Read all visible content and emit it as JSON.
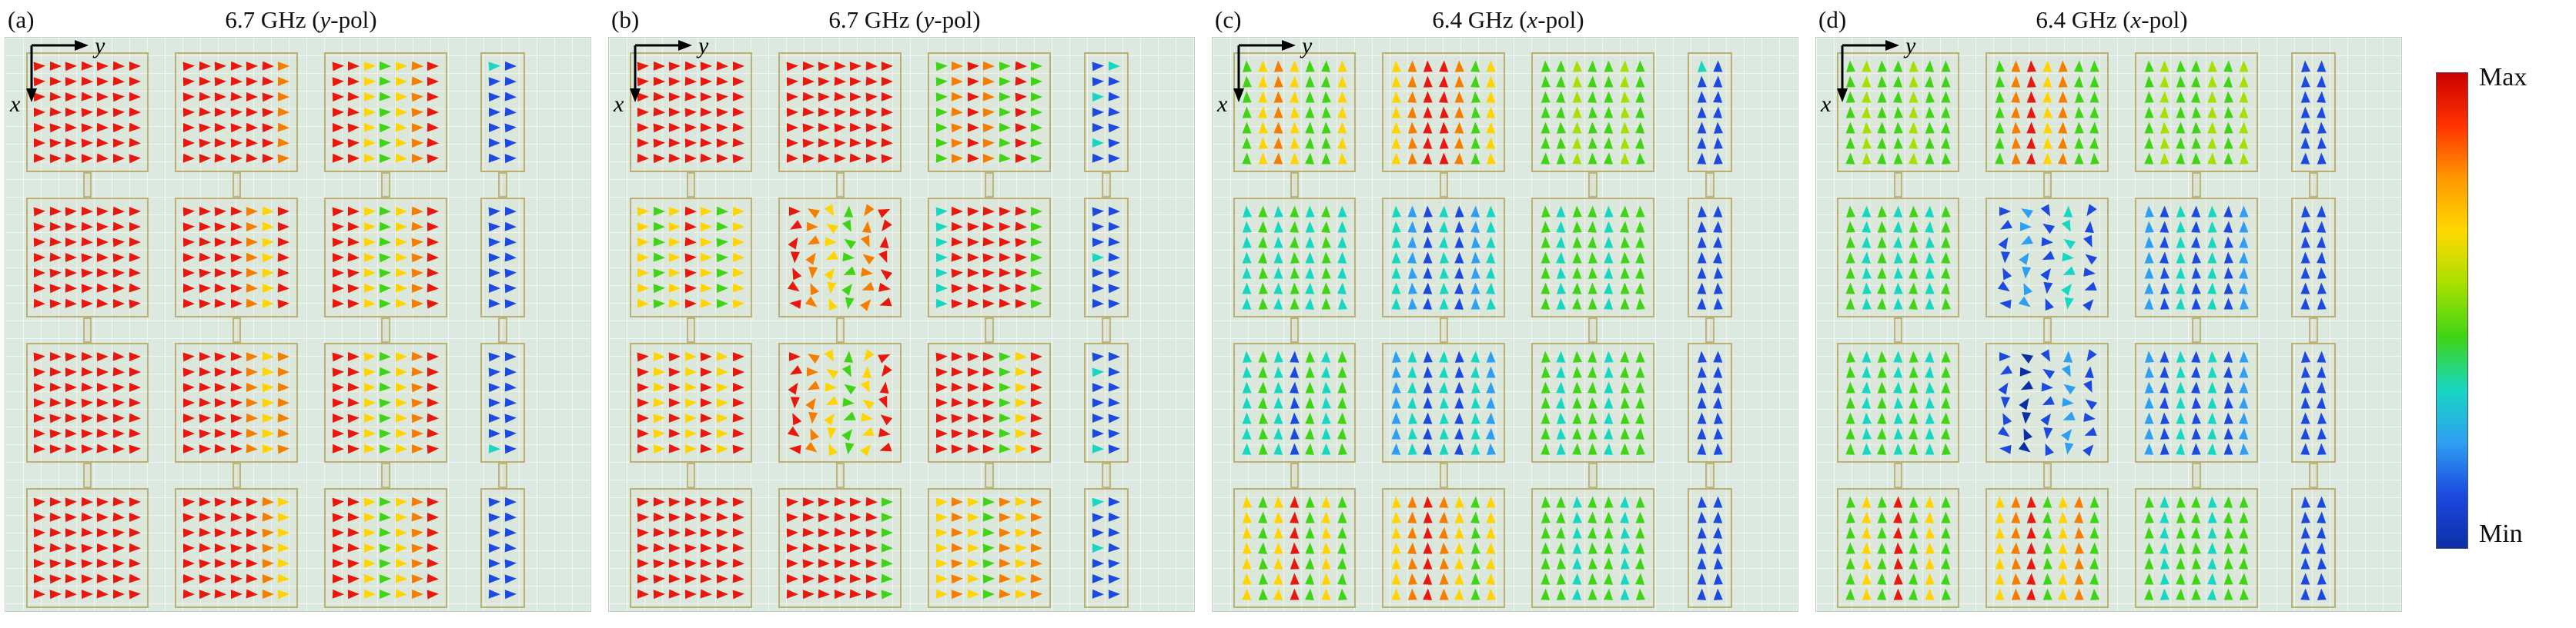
{
  "chart_data": {
    "type": "scatter",
    "subtype": "quiver-vector-field",
    "axes": {
      "x": "x",
      "y": "y"
    },
    "palette": {
      "R": "#e8180f",
      "O": "#f57d00",
      "Y": "#ffd400",
      "L": "#a5e000",
      "G": "#3fd415",
      "C": "#18d7c2",
      "A": "#2e9ff2",
      "B": "#1c49e0",
      "D": "#0d2fa6"
    },
    "style": {
      "plot_bg": "#dce9e1",
      "grid_line": "#f2f8f4",
      "patch_outline": "#b6a462",
      "axis_color": "#000000"
    },
    "colorbar": {
      "max": "Max",
      "min": "Min",
      "gradient": [
        "#cc0000",
        "#ff3300",
        "#ff9900",
        "#ffd900",
        "#a8e000",
        "#3fd415",
        "#18d7c2",
        "#2e9ff2",
        "#1c49e0",
        "#0d2fa6"
      ]
    },
    "panels": [
      {
        "id": "a",
        "label": "(a)",
        "title_prefix": "6.7 GHz (",
        "title_var": "y",
        "title_suffix": "-pol)",
        "arrow_dir": "right",
        "patches": [
          {
            "row": 0,
            "col": 0,
            "cols": "RRRRRRR"
          },
          {
            "row": 0,
            "col": 1,
            "cols": "RRRRRRO"
          },
          {
            "row": 0,
            "col": 2,
            "cols": "RRYGYOR"
          },
          {
            "row": 0,
            "col": 3,
            "cols": [
              "CB",
              "BB",
              "BB",
              "BB",
              "BB",
              "BB",
              "BB"
            ]
          },
          {
            "row": 1,
            "col": 0,
            "cols": "RRRRRRR"
          },
          {
            "row": 1,
            "col": 1,
            "cols": "RRRROYR"
          },
          {
            "row": 1,
            "col": 2,
            "cols": "RRYGYOR"
          },
          {
            "row": 1,
            "col": 3,
            "cols": "BB",
            "rows": 7
          },
          {
            "row": 2,
            "col": 0,
            "cols": "RRRRRRR"
          },
          {
            "row": 2,
            "col": 1,
            "cols": "RRRROYO"
          },
          {
            "row": 2,
            "col": 2,
            "cols": "RRYGYOR"
          },
          {
            "row": 2,
            "col": 3,
            "cols": [
              "BB",
              "BB",
              "BB",
              "BB",
              "BB",
              "BB",
              "CB"
            ]
          },
          {
            "row": 3,
            "col": 0,
            "cols": "RRRRRRR"
          },
          {
            "row": 3,
            "col": 1,
            "cols": "RRRRROY"
          },
          {
            "row": 3,
            "col": 2,
            "cols": "RRYGYOR"
          },
          {
            "row": 3,
            "col": 3,
            "cols": "BB",
            "rows": 7
          }
        ]
      },
      {
        "id": "b",
        "label": "(b)",
        "title_prefix": "6.7 GHz (",
        "title_var": "y",
        "title_suffix": "-pol)",
        "arrow_dir": "right",
        "patches": [
          {
            "row": 0,
            "col": 0,
            "cols": "RRRRRRR"
          },
          {
            "row": 0,
            "col": 1,
            "cols": "RRRRRRR"
          },
          {
            "row": 0,
            "col": 2,
            "cols": "GOROGRG"
          },
          {
            "row": 0,
            "col": 3,
            "cols": [
              "BC",
              "BB",
              "CB",
              "BB",
              "BB",
              "CB",
              "BB"
            ]
          },
          {
            "row": 1,
            "col": 0,
            "cols": "YGYRYGY"
          },
          {
            "row": 1,
            "col": 1,
            "cols": "ROYGOR",
            "swirl": true
          },
          {
            "row": 1,
            "col": 2,
            "cols": "CRRRRRG"
          },
          {
            "row": 1,
            "col": 3,
            "cols": [
              "BB",
              "BB",
              "BB",
              "CB",
              "BB",
              "BB",
              "BB"
            ]
          },
          {
            "row": 2,
            "col": 0,
            "cols": "RYRYRYR"
          },
          {
            "row": 2,
            "col": 1,
            "cols": "ROYGYR",
            "swirl": true
          },
          {
            "row": 2,
            "col": 2,
            "cols": "RRRRGYR"
          },
          {
            "row": 2,
            "col": 3,
            "cols": [
              "BB",
              "CB",
              "BB",
              "BB",
              "BB",
              "BB",
              "CB"
            ]
          },
          {
            "row": 3,
            "col": 0,
            "cols": "RRRRRRR"
          },
          {
            "row": 3,
            "col": 1,
            "cols": "RRRRRRG"
          },
          {
            "row": 3,
            "col": 2,
            "cols": "YOYGOYO"
          },
          {
            "row": 3,
            "col": 3,
            "cols": [
              "CB",
              "BB",
              "BB",
              "CB",
              "BB",
              "BB",
              "BB"
            ]
          }
        ]
      },
      {
        "id": "c",
        "label": "(c)",
        "title_prefix": "6.4 GHz (",
        "title_var": "x",
        "title_suffix": "-pol)",
        "arrow_dir": "up",
        "patches": [
          {
            "row": 0,
            "col": 0,
            "cols": "GYOYGGY"
          },
          {
            "row": 0,
            "col": 1,
            "cols": "YORROGY"
          },
          {
            "row": 0,
            "col": 2,
            "cols": "GGLGGLG"
          },
          {
            "row": 0,
            "col": 3,
            "cols": [
              "CB",
              "BB",
              "BB",
              "BB",
              "BB",
              "BB",
              "BB"
            ]
          },
          {
            "row": 1,
            "col": 0,
            "cols": "CGCGCGC"
          },
          {
            "row": 1,
            "col": 1,
            "cols": "CABCBAC"
          },
          {
            "row": 1,
            "col": 2,
            "cols": "GCGGCGG"
          },
          {
            "row": 1,
            "col": 3,
            "cols": "BB",
            "rows": 7
          },
          {
            "row": 2,
            "col": 0,
            "cols": "CGCBGCG"
          },
          {
            "row": 2,
            "col": 1,
            "cols": "ACBCBCA"
          },
          {
            "row": 2,
            "col": 2,
            "cols": "GCGGCGG"
          },
          {
            "row": 2,
            "col": 3,
            "cols": "BB",
            "rows": 7
          },
          {
            "row": 3,
            "col": 0,
            "cols": "YGYRGYG"
          },
          {
            "row": 3,
            "col": 1,
            "cols": "YOROYGY"
          },
          {
            "row": 3,
            "col": 2,
            "cols": "GGCGGCG"
          },
          {
            "row": 3,
            "col": 3,
            "cols": "BB",
            "rows": 7
          }
        ]
      },
      {
        "id": "d",
        "label": "(d)",
        "title_prefix": "6.4 GHz (",
        "title_var": "x",
        "title_suffix": "-pol)",
        "arrow_dir": "up",
        "patches": [
          {
            "row": 0,
            "col": 0,
            "cols": "GLGGLGG"
          },
          {
            "row": 0,
            "col": 1,
            "cols": "GORYOGG"
          },
          {
            "row": 0,
            "col": 2,
            "cols": "GLGGLGL"
          },
          {
            "row": 0,
            "col": 3,
            "cols": "BB",
            "rows": 7
          },
          {
            "row": 1,
            "col": 0,
            "cols": "GCGCGCG"
          },
          {
            "row": 1,
            "col": 1,
            "cols": "BABCB",
            "swirl": true
          },
          {
            "row": 1,
            "col": 2,
            "cols": "ABCBCBA"
          },
          {
            "row": 1,
            "col": 3,
            "cols": "BB",
            "rows": 7
          },
          {
            "row": 2,
            "col": 0,
            "cols": "GCGCGCG"
          },
          {
            "row": 2,
            "col": 1,
            "cols": "BDBAB",
            "swirl": true
          },
          {
            "row": 2,
            "col": 2,
            "cols": "ABCBCBA"
          },
          {
            "row": 2,
            "col": 3,
            "cols": "BB",
            "rows": 7
          },
          {
            "row": 3,
            "col": 0,
            "cols": "GYGRGYG"
          },
          {
            "row": 3,
            "col": 1,
            "cols": "YORGYOG"
          },
          {
            "row": 3,
            "col": 2,
            "cols": "GCGGCGG"
          },
          {
            "row": 3,
            "col": 3,
            "cols": "BB",
            "rows": 7
          }
        ]
      }
    ]
  }
}
